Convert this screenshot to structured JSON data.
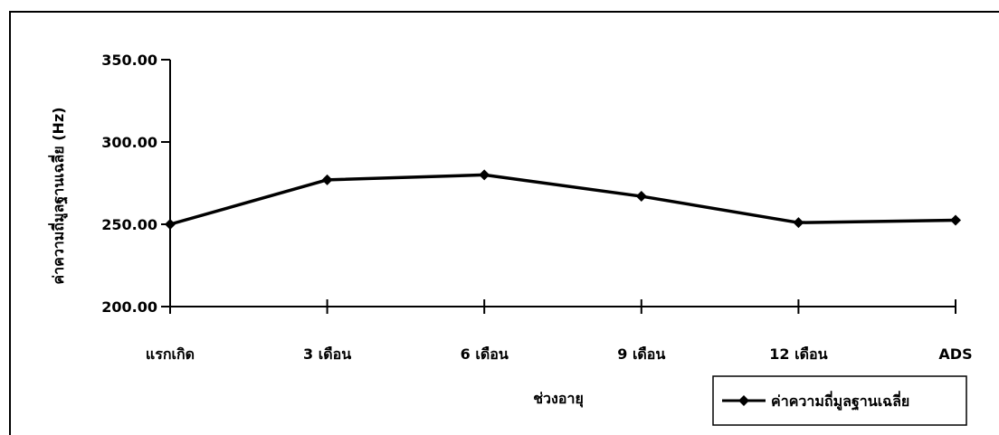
{
  "chart_data": {
    "type": "line",
    "categories": [
      "แรกเกิด",
      "3 เดือน",
      "6 เดือน",
      "9 เดือน",
      "12 เดือน",
      "ADS"
    ],
    "series": [
      {
        "name": "ค่าความถี่มูลฐานเฉลี่ย",
        "values": [
          250.0,
          277.0,
          280.0,
          267.0,
          251.0,
          252.5
        ],
        "color": "#000000"
      }
    ],
    "xlabel": "ช่วงอายุ",
    "ylabel": "ค่าความถี่มูลฐานเฉลี่ย (Hz)",
    "ylim": [
      200,
      350
    ],
    "yticks": [
      "200.00",
      "250.00",
      "300.00",
      "350.00"
    ],
    "grid": false,
    "legend": "bottom-right",
    "marker": "diamond"
  }
}
